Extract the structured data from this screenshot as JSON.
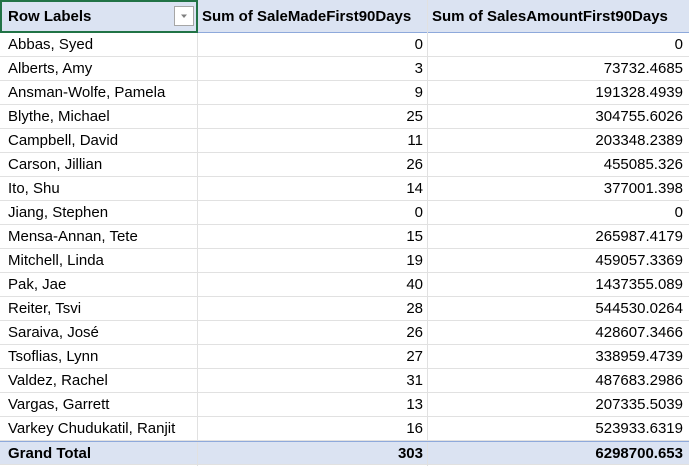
{
  "pivot": {
    "headers": {
      "row_labels": "Row Labels",
      "col1": "Sum of SaleMadeFirst90Days",
      "col2": "Sum of SalesAmountFirst90Days"
    },
    "rows": [
      {
        "label": "Abbas, Syed",
        "sales_made": "0",
        "sales_amount": "0"
      },
      {
        "label": "Alberts, Amy",
        "sales_made": "3",
        "sales_amount": "73732.4685"
      },
      {
        "label": "Ansman-Wolfe, Pamela",
        "sales_made": "9",
        "sales_amount": "191328.4939"
      },
      {
        "label": "Blythe, Michael",
        "sales_made": "25",
        "sales_amount": "304755.6026"
      },
      {
        "label": "Campbell, David",
        "sales_made": "11",
        "sales_amount": "203348.2389"
      },
      {
        "label": "Carson, Jillian",
        "sales_made": "26",
        "sales_amount": "455085.326"
      },
      {
        "label": "Ito, Shu",
        "sales_made": "14",
        "sales_amount": "377001.398"
      },
      {
        "label": "Jiang, Stephen",
        "sales_made": "0",
        "sales_amount": "0"
      },
      {
        "label": "Mensa-Annan, Tete",
        "sales_made": "15",
        "sales_amount": "265987.4179"
      },
      {
        "label": "Mitchell, Linda",
        "sales_made": "19",
        "sales_amount": "459057.3369"
      },
      {
        "label": "Pak, Jae",
        "sales_made": "40",
        "sales_amount": "1437355.089"
      },
      {
        "label": "Reiter, Tsvi",
        "sales_made": "28",
        "sales_amount": "544530.0264"
      },
      {
        "label": "Saraiva, José",
        "sales_made": "26",
        "sales_amount": "428607.3466"
      },
      {
        "label": "Tsoflias, Lynn",
        "sales_made": "27",
        "sales_amount": "338959.4739"
      },
      {
        "label": "Valdez, Rachel",
        "sales_made": "31",
        "sales_amount": "487683.2986"
      },
      {
        "label": "Vargas, Garrett",
        "sales_made": "13",
        "sales_amount": "207335.5039"
      },
      {
        "label": "Varkey Chudukatil, Ranjit",
        "sales_made": "16",
        "sales_amount": "523933.6319"
      }
    ],
    "total": {
      "label": "Grand Total",
      "sales_made": "303",
      "sales_amount": "6298700.653"
    }
  },
  "icons": {
    "filter_dropdown": "chevron-down-icon"
  },
  "colors": {
    "header_bg": "#dbe3f2",
    "header_border": "#8ea9db",
    "selection": "#217346"
  }
}
